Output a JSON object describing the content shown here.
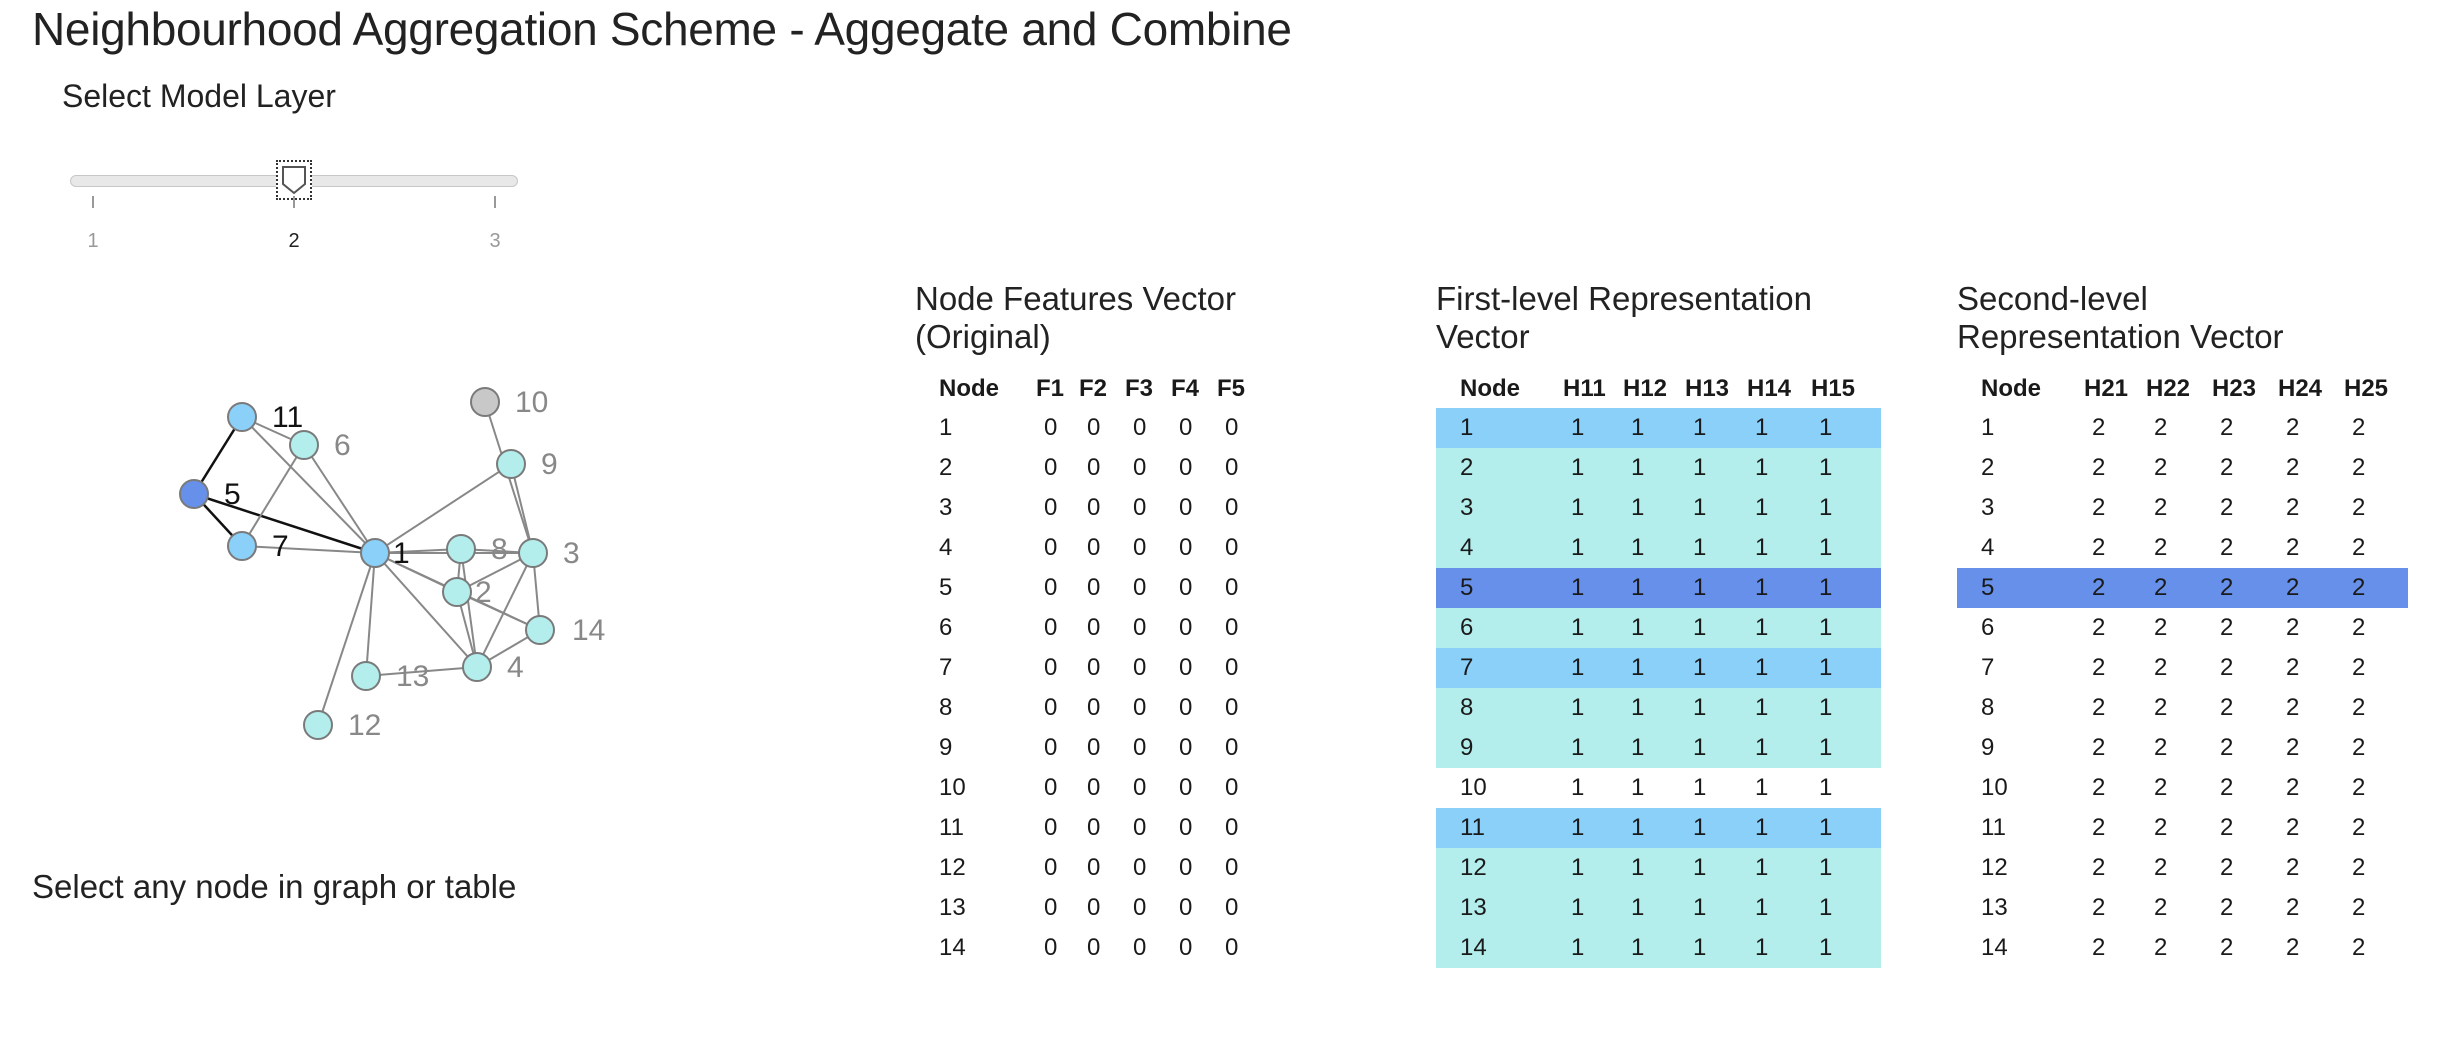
{
  "page": {
    "title": "Neighbourhood Aggregation Scheme - Aggegate and Combine",
    "hint": "Select any node in graph or table"
  },
  "slider": {
    "label": "Select Model Layer",
    "ticks": [
      "1",
      "2",
      "3"
    ],
    "selected": "2"
  },
  "graph": {
    "nodes": [
      {
        "id": "1",
        "color": "#8bd0f9",
        "label_color": "#111111"
      },
      {
        "id": "2",
        "color": "#b3eeed",
        "label_color": "#888888"
      },
      {
        "id": "3",
        "color": "#b3eeed",
        "label_color": "#888888"
      },
      {
        "id": "4",
        "color": "#b3eeed",
        "label_color": "#888888"
      },
      {
        "id": "5",
        "color": "#6690ea",
        "label_color": "#111111"
      },
      {
        "id": "6",
        "color": "#b3eeed",
        "label_color": "#888888"
      },
      {
        "id": "7",
        "color": "#8bd0f9",
        "label_color": "#111111"
      },
      {
        "id": "8",
        "color": "#b3eeed",
        "label_color": "#888888"
      },
      {
        "id": "9",
        "color": "#b3eeed",
        "label_color": "#888888"
      },
      {
        "id": "10",
        "color": "#c8c8c8",
        "label_color": "#888888"
      },
      {
        "id": "11",
        "color": "#8bd0f9",
        "label_color": "#111111"
      },
      {
        "id": "12",
        "color": "#b3eeed",
        "label_color": "#888888"
      },
      {
        "id": "13",
        "color": "#b3eeed",
        "label_color": "#888888"
      },
      {
        "id": "14",
        "color": "#b3eeed",
        "label_color": "#888888"
      }
    ],
    "edges": [
      [
        "5",
        "11"
      ],
      [
        "5",
        "7"
      ],
      [
        "5",
        "1"
      ],
      [
        "11",
        "1"
      ],
      [
        "11",
        "6"
      ],
      [
        "6",
        "7"
      ],
      [
        "6",
        "1"
      ],
      [
        "7",
        "1"
      ],
      [
        "1",
        "8"
      ],
      [
        "1",
        "3"
      ],
      [
        "1",
        "2"
      ],
      [
        "1",
        "4"
      ],
      [
        "1",
        "9"
      ],
      [
        "1",
        "13"
      ],
      [
        "1",
        "12"
      ],
      [
        "1",
        "14"
      ],
      [
        "8",
        "3"
      ],
      [
        "8",
        "2"
      ],
      [
        "8",
        "4"
      ],
      [
        "9",
        "3"
      ],
      [
        "3",
        "2"
      ],
      [
        "3",
        "4"
      ],
      [
        "3",
        "14"
      ],
      [
        "2",
        "4"
      ],
      [
        "2",
        "14"
      ],
      [
        "4",
        "13"
      ],
      [
        "4",
        "14"
      ],
      [
        "10",
        "3"
      ]
    ],
    "highlight_edges": [
      [
        "5",
        "11"
      ],
      [
        "5",
        "7"
      ],
      [
        "5",
        "1"
      ]
    ]
  },
  "tables": {
    "original": {
      "heading": "Node Features Vector (Original)",
      "columns": [
        "Node",
        "F1",
        "F2",
        "F3",
        "F4",
        "F5"
      ],
      "rows": [
        [
          "1",
          "0",
          "0",
          "0",
          "0",
          "0"
        ],
        [
          "2",
          "0",
          "0",
          "0",
          "0",
          "0"
        ],
        [
          "3",
          "0",
          "0",
          "0",
          "0",
          "0"
        ],
        [
          "4",
          "0",
          "0",
          "0",
          "0",
          "0"
        ],
        [
          "5",
          "0",
          "0",
          "0",
          "0",
          "0"
        ],
        [
          "6",
          "0",
          "0",
          "0",
          "0",
          "0"
        ],
        [
          "7",
          "0",
          "0",
          "0",
          "0",
          "0"
        ],
        [
          "8",
          "0",
          "0",
          "0",
          "0",
          "0"
        ],
        [
          "9",
          "0",
          "0",
          "0",
          "0",
          "0"
        ],
        [
          "10",
          "0",
          "0",
          "0",
          "0",
          "0"
        ],
        [
          "11",
          "0",
          "0",
          "0",
          "0",
          "0"
        ],
        [
          "12",
          "0",
          "0",
          "0",
          "0",
          "0"
        ],
        [
          "13",
          "0",
          "0",
          "0",
          "0",
          "0"
        ],
        [
          "14",
          "0",
          "0",
          "0",
          "0",
          "0"
        ]
      ],
      "highlights": [
        "none",
        "none",
        "none",
        "none",
        "none",
        "none",
        "none",
        "none",
        "none",
        "none",
        "none",
        "none",
        "none",
        "none"
      ]
    },
    "first_level": {
      "heading": "First-level Representation Vector",
      "columns": [
        "Node",
        "H11",
        "H12",
        "H13",
        "H14",
        "H15"
      ],
      "rows": [
        [
          "1",
          "1",
          "1",
          "1",
          "1",
          "1"
        ],
        [
          "2",
          "1",
          "1",
          "1",
          "1",
          "1"
        ],
        [
          "3",
          "1",
          "1",
          "1",
          "1",
          "1"
        ],
        [
          "4",
          "1",
          "1",
          "1",
          "1",
          "1"
        ],
        [
          "5",
          "1",
          "1",
          "1",
          "1",
          "1"
        ],
        [
          "6",
          "1",
          "1",
          "1",
          "1",
          "1"
        ],
        [
          "7",
          "1",
          "1",
          "1",
          "1",
          "1"
        ],
        [
          "8",
          "1",
          "1",
          "1",
          "1",
          "1"
        ],
        [
          "9",
          "1",
          "1",
          "1",
          "1",
          "1"
        ],
        [
          "10",
          "1",
          "1",
          "1",
          "1",
          "1"
        ],
        [
          "11",
          "1",
          "1",
          "1",
          "1",
          "1"
        ],
        [
          "12",
          "1",
          "1",
          "1",
          "1",
          "1"
        ],
        [
          "13",
          "1",
          "1",
          "1",
          "1",
          "1"
        ],
        [
          "14",
          "1",
          "1",
          "1",
          "1",
          "1"
        ]
      ],
      "highlights": [
        "blue",
        "light",
        "light",
        "light",
        "dark",
        "light",
        "blue",
        "light",
        "light",
        "none",
        "blue",
        "light",
        "light",
        "light"
      ]
    },
    "second_level": {
      "heading": "Second-level Representation Vector",
      "columns": [
        "Node",
        "H21",
        "H22",
        "H23",
        "H24",
        "H25"
      ],
      "rows": [
        [
          "1",
          "2",
          "2",
          "2",
          "2",
          "2"
        ],
        [
          "2",
          "2",
          "2",
          "2",
          "2",
          "2"
        ],
        [
          "3",
          "2",
          "2",
          "2",
          "2",
          "2"
        ],
        [
          "4",
          "2",
          "2",
          "2",
          "2",
          "2"
        ],
        [
          "5",
          "2",
          "2",
          "2",
          "2",
          "2"
        ],
        [
          "6",
          "2",
          "2",
          "2",
          "2",
          "2"
        ],
        [
          "7",
          "2",
          "2",
          "2",
          "2",
          "2"
        ],
        [
          "8",
          "2",
          "2",
          "2",
          "2",
          "2"
        ],
        [
          "9",
          "2",
          "2",
          "2",
          "2",
          "2"
        ],
        [
          "10",
          "2",
          "2",
          "2",
          "2",
          "2"
        ],
        [
          "11",
          "2",
          "2",
          "2",
          "2",
          "2"
        ],
        [
          "12",
          "2",
          "2",
          "2",
          "2",
          "2"
        ],
        [
          "13",
          "2",
          "2",
          "2",
          "2",
          "2"
        ],
        [
          "14",
          "2",
          "2",
          "2",
          "2",
          "2"
        ]
      ],
      "highlights": [
        "none",
        "none",
        "none",
        "none",
        "dark",
        "none",
        "none",
        "none",
        "none",
        "none",
        "none",
        "none",
        "none",
        "none"
      ]
    }
  },
  "colors": {
    "highlight_light": "#b3eeed",
    "highlight_blue": "#8bd0f9",
    "highlight_dark": "#6690ea",
    "edge": "#888888",
    "edge_highlight": "#111111"
  }
}
